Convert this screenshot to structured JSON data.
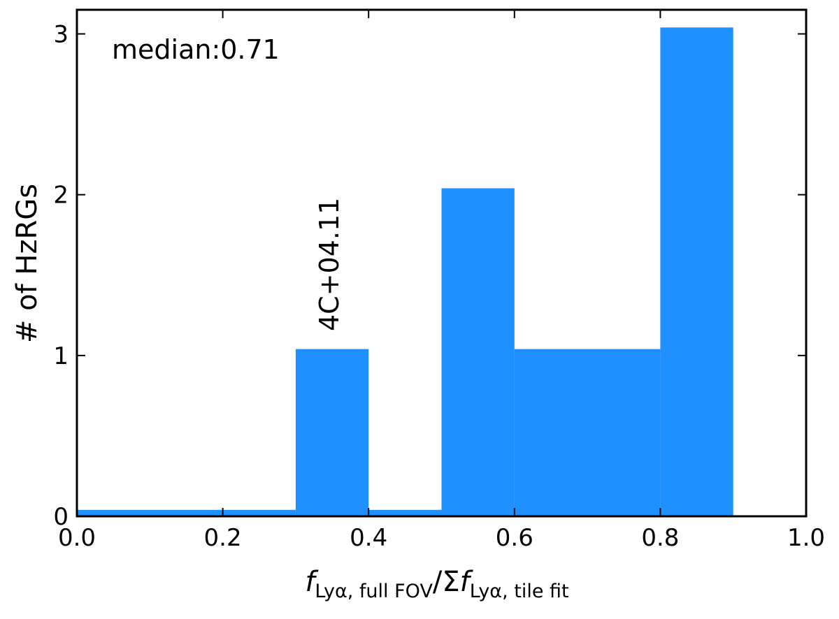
{
  "chart_data": {
    "type": "bar",
    "bins": [
      {
        "x0": 0.0,
        "x1": 0.3,
        "value": 0
      },
      {
        "x0": 0.3,
        "x1": 0.4,
        "value": 1
      },
      {
        "x0": 0.4,
        "x1": 0.5,
        "value": 0
      },
      {
        "x0": 0.5,
        "x1": 0.6,
        "value": 2
      },
      {
        "x0": 0.6,
        "x1": 0.8,
        "value": 1
      },
      {
        "x0": 0.8,
        "x1": 0.9,
        "value": 3
      }
    ],
    "baseline_offset": 0.04,
    "bar_color": "#1e90ff",
    "xlim": [
      0.0,
      1.0
    ],
    "ylim": [
      0.0,
      3.15
    ],
    "xticks": [
      0.0,
      0.2,
      0.4,
      0.6,
      0.8,
      1.0
    ],
    "xtick_labels": [
      "0.0",
      "0.2",
      "0.4",
      "0.6",
      "0.8",
      "1.0"
    ],
    "yticks": [
      0,
      1,
      2,
      3
    ],
    "ytick_labels": [
      "0",
      "1",
      "2",
      "3"
    ],
    "ylabel": "# of HzRGs",
    "xlabel": {
      "num_main": "f",
      "num_sub": "Lyα, full FOV",
      "sep": "/Σ",
      "den_main": "f",
      "den_sub": "Lyα, tile fit"
    },
    "annotations": {
      "median": "median:0.71",
      "source": "4C+04.11"
    },
    "grid": false
  }
}
